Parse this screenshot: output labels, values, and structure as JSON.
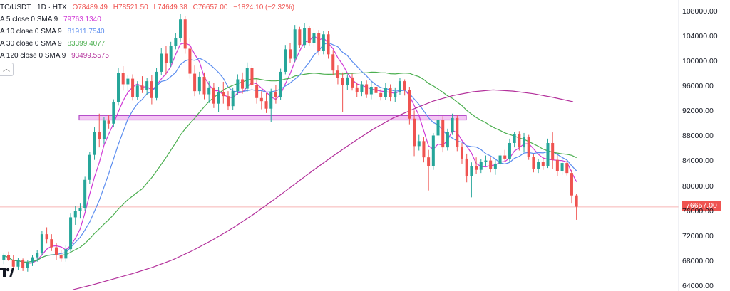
{
  "header": {
    "symbol": "TC/USDT · 1D · HTX",
    "o": "O78489.49",
    "h": "H78521.50",
    "l": "L74649.38",
    "c": "C76657.00",
    "chg": "−1824.10 (−2.32%)",
    "ohlc_color": "#ef5350"
  },
  "indicators": [
    {
      "label": "A 5 close 0 SMA 9",
      "value": "79763.1340",
      "color": "#d03ad6"
    },
    {
      "label": "A 10 close 0 SMA 9",
      "value": "81911.7540",
      "color": "#5b8def"
    },
    {
      "label": "A 30 close 0 SMA 9",
      "value": "83399.4077",
      "color": "#4caf50"
    },
    {
      "label": "A 120 close 0 SMA 9",
      "value": "93499.5575",
      "color": "#b3309b"
    }
  ],
  "collapse_icon": "chevron-up",
  "last_price": "76657.00",
  "colors": {
    "up": "#26a69a",
    "down": "#ef5350",
    "zone_fill": "#f3c6f3",
    "zone_stroke": "#b34bc8",
    "price_line": "#f6b4b4"
  },
  "chart_data": {
    "type": "candlestick",
    "y_axis": {
      "ticks": [
        "108000.00",
        "104000.00",
        "100000.00",
        "96000.00",
        "92000.00",
        "88000.00",
        "84000.00",
        "80000.00",
        "76000.00",
        "72000.00",
        "68000.00",
        "64000.00"
      ],
      "ylim": [
        63200,
        109800
      ]
    },
    "zone": {
      "from": 90600,
      "to": 91300,
      "label": ""
    },
    "candles": [
      {
        "o": 68200,
        "h": 69200,
        "l": 67500,
        "c": 68900
      },
      {
        "o": 68900,
        "h": 69500,
        "l": 68000,
        "c": 68200
      },
      {
        "o": 68200,
        "h": 68900,
        "l": 66800,
        "c": 67100
      },
      {
        "o": 67100,
        "h": 68500,
        "l": 66600,
        "c": 68100
      },
      {
        "o": 68100,
        "h": 68400,
        "l": 66400,
        "c": 66900
      },
      {
        "o": 66900,
        "h": 68200,
        "l": 66300,
        "c": 67800
      },
      {
        "o": 67800,
        "h": 69000,
        "l": 67200,
        "c": 68600
      },
      {
        "o": 68600,
        "h": 69800,
        "l": 67900,
        "c": 69300
      },
      {
        "o": 69300,
        "h": 72800,
        "l": 68900,
        "c": 72300
      },
      {
        "o": 72300,
        "h": 73400,
        "l": 70800,
        "c": 71500
      },
      {
        "o": 71500,
        "h": 72300,
        "l": 69600,
        "c": 70200
      },
      {
        "o": 70200,
        "h": 70900,
        "l": 68200,
        "c": 68900
      },
      {
        "o": 68900,
        "h": 69800,
        "l": 67900,
        "c": 68400
      },
      {
        "o": 68400,
        "h": 70600,
        "l": 67900,
        "c": 69900
      },
      {
        "o": 69900,
        "h": 75600,
        "l": 69500,
        "c": 75000
      },
      {
        "o": 75000,
        "h": 76800,
        "l": 73800,
        "c": 76000
      },
      {
        "o": 76000,
        "h": 77200,
        "l": 74800,
        "c": 76500
      },
      {
        "o": 76500,
        "h": 81500,
        "l": 76000,
        "c": 81000
      },
      {
        "o": 81000,
        "h": 85500,
        "l": 80300,
        "c": 85000
      },
      {
        "o": 85000,
        "h": 89400,
        "l": 84200,
        "c": 88700
      },
      {
        "o": 88700,
        "h": 91600,
        "l": 86200,
        "c": 87500
      },
      {
        "o": 87500,
        "h": 91100,
        "l": 86800,
        "c": 90500
      },
      {
        "o": 90500,
        "h": 91400,
        "l": 89200,
        "c": 90000
      },
      {
        "o": 90000,
        "h": 93900,
        "l": 89400,
        "c": 93400
      },
      {
        "o": 93400,
        "h": 98900,
        "l": 92900,
        "c": 98100
      },
      {
        "o": 98100,
        "h": 99200,
        "l": 95300,
        "c": 96300
      },
      {
        "o": 96300,
        "h": 97800,
        "l": 95200,
        "c": 97200
      },
      {
        "o": 97200,
        "h": 97900,
        "l": 93700,
        "c": 94200
      },
      {
        "o": 94200,
        "h": 96800,
        "l": 93800,
        "c": 96100
      },
      {
        "o": 96100,
        "h": 97600,
        "l": 94900,
        "c": 95400
      },
      {
        "o": 95400,
        "h": 97300,
        "l": 94600,
        "c": 96800
      },
      {
        "o": 96800,
        "h": 97800,
        "l": 93100,
        "c": 94100
      },
      {
        "o": 94100,
        "h": 98900,
        "l": 93700,
        "c": 98300
      },
      {
        "o": 98300,
        "h": 102100,
        "l": 97800,
        "c": 101200
      },
      {
        "o": 101200,
        "h": 102500,
        "l": 97900,
        "c": 99700
      },
      {
        "o": 99700,
        "h": 103100,
        "l": 99100,
        "c": 102400
      },
      {
        "o": 102400,
        "h": 104500,
        "l": 101900,
        "c": 103700
      },
      {
        "o": 103700,
        "h": 107600,
        "l": 103100,
        "c": 106700
      },
      {
        "o": 106700,
        "h": 107200,
        "l": 101200,
        "c": 102000
      },
      {
        "o": 102000,
        "h": 103700,
        "l": 97200,
        "c": 98000
      },
      {
        "o": 98000,
        "h": 99300,
        "l": 94400,
        "c": 95200
      },
      {
        "o": 95200,
        "h": 98300,
        "l": 94700,
        "c": 97500
      },
      {
        "o": 97500,
        "h": 98200,
        "l": 93900,
        "c": 94700
      },
      {
        "o": 94700,
        "h": 96800,
        "l": 93300,
        "c": 95800
      },
      {
        "o": 95800,
        "h": 96500,
        "l": 92500,
        "c": 93200
      },
      {
        "o": 93200,
        "h": 95900,
        "l": 91800,
        "c": 95100
      },
      {
        "o": 95100,
        "h": 96700,
        "l": 93200,
        "c": 94400
      },
      {
        "o": 94400,
        "h": 95200,
        "l": 92200,
        "c": 92800
      },
      {
        "o": 92800,
        "h": 95800,
        "l": 92200,
        "c": 95200
      },
      {
        "o": 95200,
        "h": 97900,
        "l": 94600,
        "c": 97100
      },
      {
        "o": 97100,
        "h": 98200,
        "l": 94800,
        "c": 95600
      },
      {
        "o": 95600,
        "h": 99800,
        "l": 95100,
        "c": 98900
      },
      {
        "o": 98900,
        "h": 99400,
        "l": 95400,
        "c": 96200
      },
      {
        "o": 96200,
        "h": 97100,
        "l": 93200,
        "c": 94100
      },
      {
        "o": 94100,
        "h": 95200,
        "l": 92300,
        "c": 93600
      },
      {
        "o": 93600,
        "h": 94900,
        "l": 91700,
        "c": 92400
      },
      {
        "o": 92400,
        "h": 95600,
        "l": 90300,
        "c": 95100
      },
      {
        "o": 95100,
        "h": 96200,
        "l": 93200,
        "c": 94200
      },
      {
        "o": 94200,
        "h": 98800,
        "l": 93800,
        "c": 98300
      },
      {
        "o": 98300,
        "h": 102600,
        "l": 97900,
        "c": 101900
      },
      {
        "o": 101900,
        "h": 102900,
        "l": 99700,
        "c": 100400
      },
      {
        "o": 100400,
        "h": 105800,
        "l": 99900,
        "c": 105100
      },
      {
        "o": 105100,
        "h": 105500,
        "l": 102100,
        "c": 102600
      },
      {
        "o": 102600,
        "h": 106100,
        "l": 102100,
        "c": 105300
      },
      {
        "o": 105300,
        "h": 105700,
        "l": 102400,
        "c": 102900
      },
      {
        "o": 102900,
        "h": 105200,
        "l": 102300,
        "c": 104500
      },
      {
        "o": 104500,
        "h": 105000,
        "l": 100900,
        "c": 101600
      },
      {
        "o": 101600,
        "h": 104900,
        "l": 101100,
        "c": 104300
      },
      {
        "o": 104300,
        "h": 104900,
        "l": 100400,
        "c": 101100
      },
      {
        "o": 101100,
        "h": 101800,
        "l": 97800,
        "c": 98500
      },
      {
        "o": 98500,
        "h": 99300,
        "l": 96300,
        "c": 97300
      },
      {
        "o": 97300,
        "h": 98200,
        "l": 91800,
        "c": 96200
      },
      {
        "o": 96200,
        "h": 97900,
        "l": 95400,
        "c": 97400
      },
      {
        "o": 97400,
        "h": 98000,
        "l": 95300,
        "c": 95800
      },
      {
        "o": 95800,
        "h": 96600,
        "l": 94300,
        "c": 95000
      },
      {
        "o": 95000,
        "h": 96800,
        "l": 94400,
        "c": 96300
      },
      {
        "o": 96300,
        "h": 96900,
        "l": 94100,
        "c": 94700
      },
      {
        "o": 94700,
        "h": 96700,
        "l": 93900,
        "c": 95900
      },
      {
        "o": 95900,
        "h": 96700,
        "l": 94200,
        "c": 94900
      },
      {
        "o": 94900,
        "h": 95500,
        "l": 93700,
        "c": 94300
      },
      {
        "o": 94300,
        "h": 96500,
        "l": 93800,
        "c": 95700
      },
      {
        "o": 95700,
        "h": 96300,
        "l": 93600,
        "c": 94200
      },
      {
        "o": 94200,
        "h": 95800,
        "l": 93500,
        "c": 95100
      },
      {
        "o": 95100,
        "h": 97300,
        "l": 94600,
        "c": 96800
      },
      {
        "o": 96800,
        "h": 97100,
        "l": 94500,
        "c": 95400
      },
      {
        "o": 95400,
        "h": 95900,
        "l": 89900,
        "c": 90800
      },
      {
        "o": 90800,
        "h": 92100,
        "l": 84800,
        "c": 86400
      },
      {
        "o": 86400,
        "h": 88200,
        "l": 85700,
        "c": 87200
      },
      {
        "o": 87200,
        "h": 87900,
        "l": 83800,
        "c": 84600
      },
      {
        "o": 84600,
        "h": 85800,
        "l": 79300,
        "c": 83200
      },
      {
        "o": 83200,
        "h": 88500,
        "l": 82600,
        "c": 88100
      },
      {
        "o": 88100,
        "h": 95300,
        "l": 87500,
        "c": 90600
      },
      {
        "o": 90600,
        "h": 91200,
        "l": 85400,
        "c": 86200
      },
      {
        "o": 86200,
        "h": 89200,
        "l": 85700,
        "c": 88700
      },
      {
        "o": 88700,
        "h": 91600,
        "l": 88200,
        "c": 90900
      },
      {
        "o": 90900,
        "h": 91400,
        "l": 85600,
        "c": 86300
      },
      {
        "o": 86300,
        "h": 86900,
        "l": 83600,
        "c": 84400
      },
      {
        "o": 84400,
        "h": 85200,
        "l": 80600,
        "c": 81600
      },
      {
        "o": 81600,
        "h": 83800,
        "l": 78200,
        "c": 83200
      },
      {
        "o": 83200,
        "h": 84600,
        "l": 81900,
        "c": 82600
      },
      {
        "o": 82600,
        "h": 84300,
        "l": 82100,
        "c": 83900
      },
      {
        "o": 83900,
        "h": 84900,
        "l": 83200,
        "c": 84100
      },
      {
        "o": 84100,
        "h": 84600,
        "l": 82200,
        "c": 82700
      },
      {
        "o": 82700,
        "h": 84200,
        "l": 81800,
        "c": 83600
      },
      {
        "o": 83600,
        "h": 85300,
        "l": 83100,
        "c": 84900
      },
      {
        "o": 84900,
        "h": 85800,
        "l": 83900,
        "c": 84400
      },
      {
        "o": 84400,
        "h": 87600,
        "l": 83900,
        "c": 86900
      },
      {
        "o": 86900,
        "h": 88700,
        "l": 86200,
        "c": 88300
      },
      {
        "o": 88300,
        "h": 88800,
        "l": 85700,
        "c": 86200
      },
      {
        "o": 86200,
        "h": 88500,
        "l": 85400,
        "c": 87900
      },
      {
        "o": 87900,
        "h": 88200,
        "l": 84200,
        "c": 84700
      },
      {
        "o": 84700,
        "h": 85200,
        "l": 82200,
        "c": 82800
      },
      {
        "o": 82800,
        "h": 84400,
        "l": 82100,
        "c": 83900
      },
      {
        "o": 83900,
        "h": 84700,
        "l": 82600,
        "c": 83200
      },
      {
        "o": 83200,
        "h": 87600,
        "l": 82900,
        "c": 86900
      },
      {
        "o": 86900,
        "h": 88600,
        "l": 82700,
        "c": 84200
      },
      {
        "o": 84200,
        "h": 84900,
        "l": 81600,
        "c": 82400
      },
      {
        "o": 82400,
        "h": 84300,
        "l": 81800,
        "c": 83700
      },
      {
        "o": 83700,
        "h": 84100,
        "l": 81700,
        "c": 82100
      },
      {
        "o": 82100,
        "h": 82600,
        "l": 77200,
        "c": 78500
      },
      {
        "o": 78500,
        "h": 78800,
        "l": 74600,
        "c": 76700
      }
    ],
    "ma_series": [
      {
        "name": "A 5 close 0 SMA 9",
        "period": 5,
        "color": "#d03ad6"
      },
      {
        "name": "A 10 close 0 SMA 9",
        "period": 10,
        "color": "#5b8def"
      },
      {
        "name": "A 30 close 0 SMA 9",
        "period": 30,
        "color": "#4caf50"
      },
      {
        "name": "A 120 close 0 SMA 9",
        "period": 120,
        "color": "#b3309b",
        "values": [
          63400,
          64200,
          65100,
          66000,
          67000,
          68200,
          69700,
          71400,
          73300,
          75400,
          77700,
          80100,
          82500,
          84800,
          87000,
          89100,
          90900,
          92300,
          93600,
          94500,
          95100,
          95400,
          95200,
          94800,
          94200,
          93500
        ]
      }
    ],
    "xlabel": "",
    "ylabel": ""
  }
}
